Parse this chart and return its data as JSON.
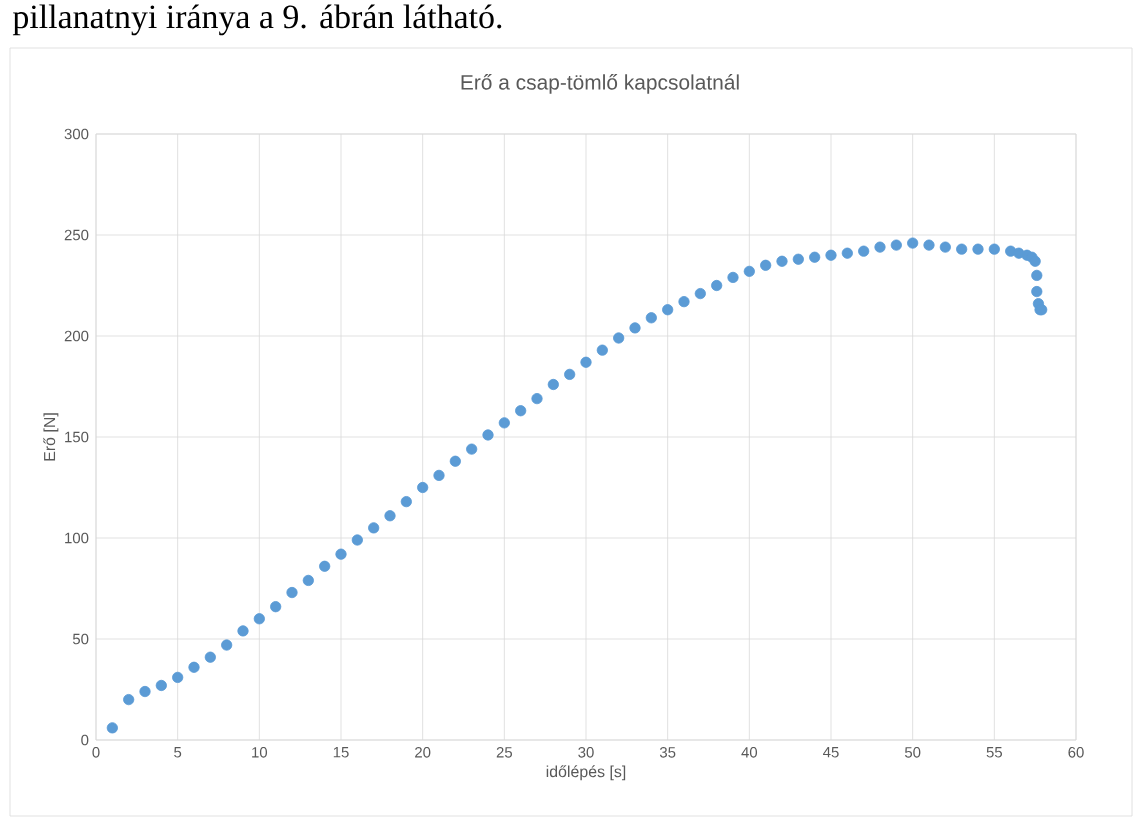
{
  "chart_data": {
    "type": "scatter",
    "title": "Erő a csap-tömlő kapcsolatnál",
    "xlabel": "időlépés [s]",
    "ylabel": "Erő [N]",
    "annotations": [
      "pillanatnyi iránya a 9. ábrán látható."
    ],
    "x": [
      1,
      2,
      3,
      4,
      5,
      6,
      7,
      8,
      9,
      10,
      11,
      12,
      13,
      14,
      15,
      16,
      17,
      18,
      19,
      20,
      21,
      22,
      23,
      24,
      25,
      26,
      27,
      28,
      29,
      30,
      31,
      32,
      33,
      34,
      35,
      36,
      37,
      38,
      39,
      40,
      41,
      42,
      43,
      44,
      45,
      46,
      47,
      48,
      49,
      50,
      51,
      52,
      53,
      54,
      55,
      56,
      56.5,
      57,
      57.3,
      57.5,
      57.6,
      57.6,
      57.7,
      57.8,
      57.9
    ],
    "series": [
      {
        "color": "#5b9bd5",
        "values": [
          6,
          20,
          24,
          27,
          31,
          36,
          41,
          47,
          54,
          60,
          66,
          73,
          79,
          86,
          92,
          99,
          105,
          111,
          118,
          125,
          131,
          138,
          144,
          151,
          157,
          163,
          169,
          176,
          181,
          187,
          193,
          199,
          204,
          209,
          213,
          217,
          221,
          225,
          229,
          232,
          235,
          237,
          238,
          239,
          240,
          241,
          242,
          244,
          245,
          246,
          245,
          244,
          243,
          243,
          243,
          242,
          241,
          240,
          239,
          237,
          230,
          222,
          216,
          213,
          213
        ]
      }
    ],
    "marker": "circle",
    "grid": true,
    "xlim": [
      0,
      60
    ],
    "ylim": [
      0,
      300
    ],
    "xticks": [
      0,
      5,
      10,
      15,
      20,
      25,
      30,
      35,
      40,
      45,
      50,
      55,
      60
    ],
    "yticks": [
      0,
      50,
      100,
      150,
      200,
      250,
      300
    ]
  }
}
